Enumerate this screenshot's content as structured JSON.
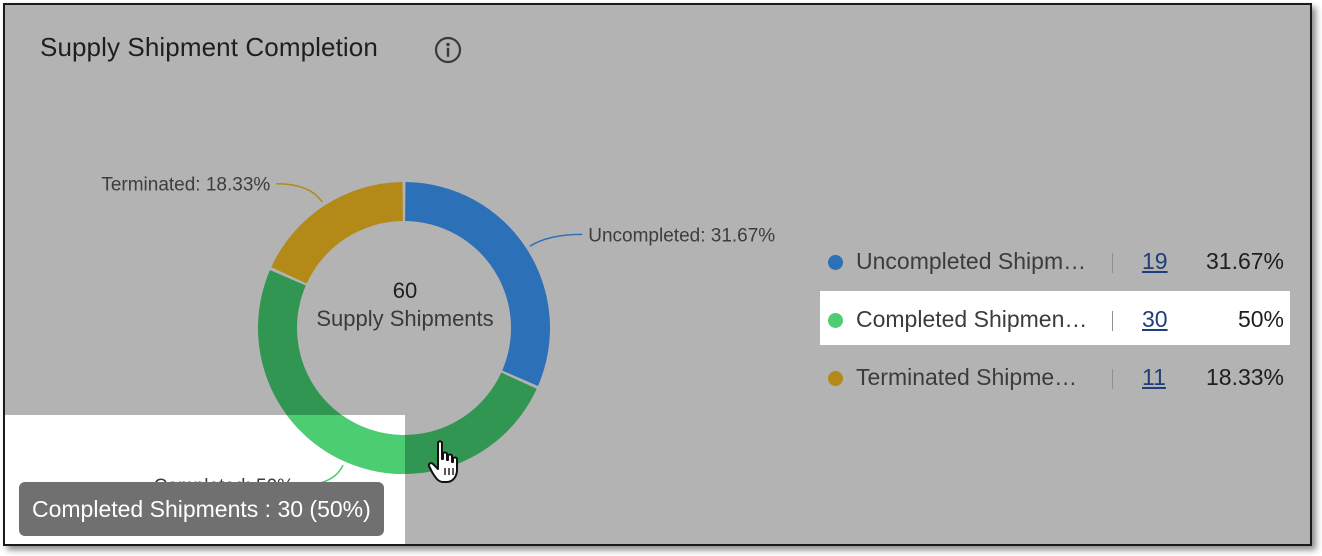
{
  "title": "Supply Shipment Completion",
  "colors": {
    "uncompleted": "#2c70b8",
    "completed": "#319652",
    "completed_hover": "#4ccd72",
    "terminated": "#b38918"
  },
  "center": {
    "total": "60",
    "label": "Supply Shipments"
  },
  "chart_data": {
    "type": "pie",
    "variant": "donut",
    "total": 60,
    "slices": [
      {
        "label": "Uncompleted",
        "value": 19,
        "percent": 31.67,
        "slice_label": "Uncompleted: 31.67%",
        "color": "#2c70b8"
      },
      {
        "label": "Completed",
        "value": 30,
        "percent": 50,
        "slice_label": "Completed: 50%",
        "color": "#319652"
      },
      {
        "label": "Terminated",
        "value": 11,
        "percent": 18.33,
        "slice_label": "Terminated: 18.33%",
        "color": "#b38918"
      }
    ]
  },
  "legend": [
    {
      "name": "Uncompleted Shipm…",
      "count": "19",
      "percent": "31.67%",
      "color": "#2c70b8",
      "highlighted": false
    },
    {
      "name": "Completed Shipmen…",
      "count": "30",
      "percent": "50%",
      "color": "#4ccd72",
      "highlighted": true
    },
    {
      "name": "Terminated Shipme…",
      "count": "11",
      "percent": "18.33%",
      "color": "#b38918",
      "highlighted": false
    }
  ],
  "tooltip": "Completed Shipments : 30 (50%)",
  "icons": {
    "info": "info-icon",
    "cursor": "hand-pointer-icon"
  }
}
